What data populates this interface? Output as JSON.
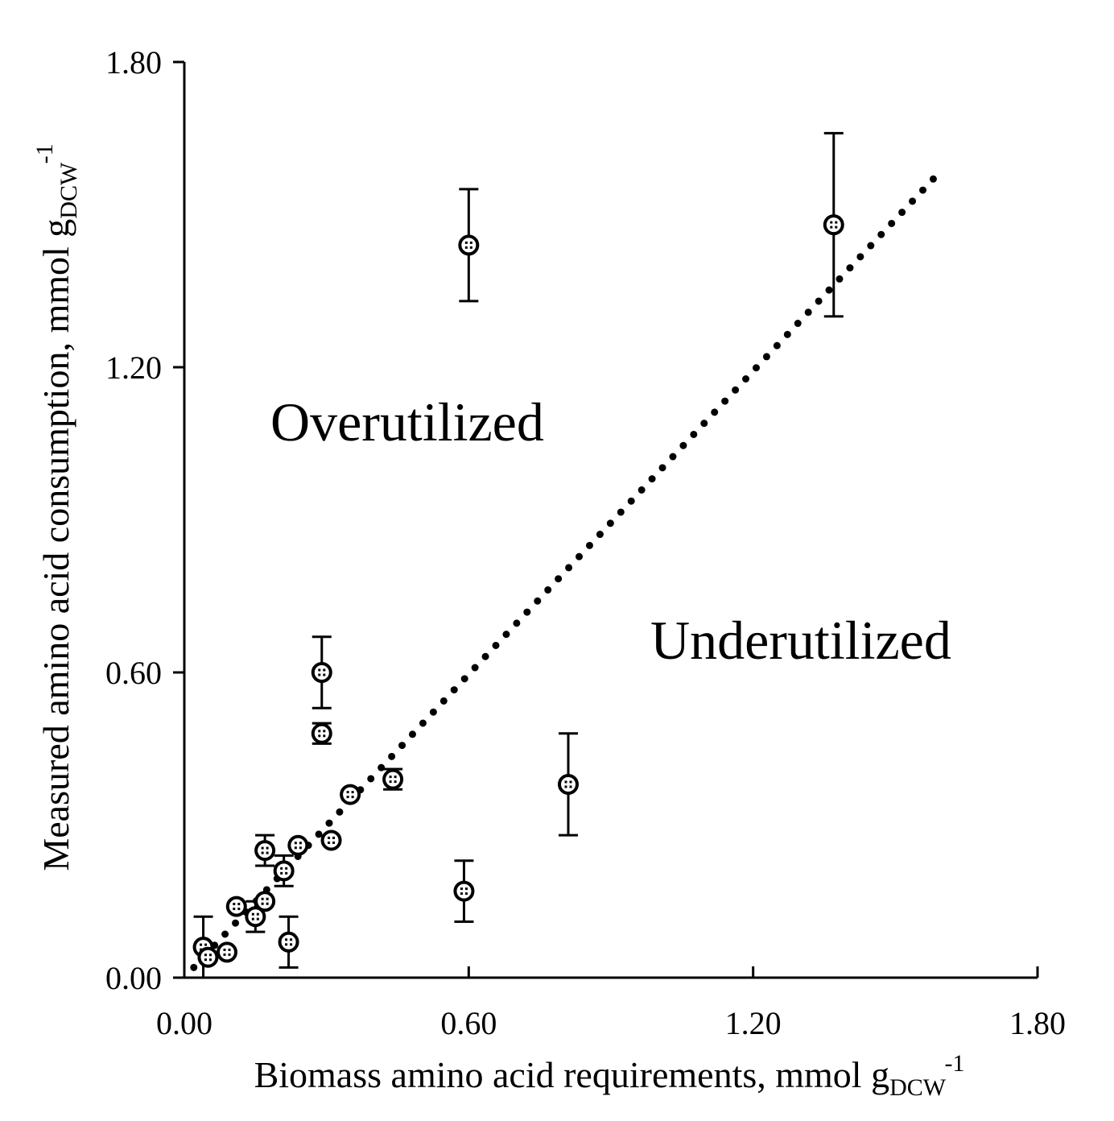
{
  "chart_data": {
    "type": "scatter",
    "title": "",
    "xlabel": {
      "main": "Biomass amino acid requirements, mmol g",
      "sub": "DCW",
      "sup": "-1"
    },
    "ylabel": {
      "main": "Measured amino acid consumption, mmol g",
      "sub": "DCW",
      "sup": "-1"
    },
    "xlim": [
      0,
      1.8
    ],
    "ylim": [
      0,
      1.8
    ],
    "x_ticks": [
      0,
      0.6,
      1.2,
      1.8
    ],
    "y_ticks": [
      0,
      0.6,
      1.2,
      1.8
    ],
    "x_tick_labels": [
      "0.00",
      "0.60",
      "1.20",
      "1.80"
    ],
    "y_tick_labels": [
      "0.00",
      "0.60",
      "1.20",
      "1.80"
    ],
    "grid": false,
    "annotations": [
      {
        "text": "Overutilized",
        "x": 0.19,
        "y": 1.09
      },
      {
        "text": "Underutilized",
        "x": 0.99,
        "y": 0.66
      }
    ],
    "trendline": {
      "style": "dotted",
      "from": [
        0.02,
        0.02
      ],
      "to": [
        1.58,
        1.57
      ]
    },
    "points": [
      {
        "x": 0.04,
        "y": 0.06,
        "err": 0.06
      },
      {
        "x": 0.05,
        "y": 0.04,
        "err": 0.0
      },
      {
        "x": 0.09,
        "y": 0.05,
        "err": 0.0
      },
      {
        "x": 0.11,
        "y": 0.14,
        "err": 0.0
      },
      {
        "x": 0.15,
        "y": 0.12,
        "err": 0.03
      },
      {
        "x": 0.17,
        "y": 0.15,
        "err": 0.0
      },
      {
        "x": 0.17,
        "y": 0.25,
        "err": 0.03
      },
      {
        "x": 0.21,
        "y": 0.21,
        "err": 0.03
      },
      {
        "x": 0.22,
        "y": 0.07,
        "err": 0.05
      },
      {
        "x": 0.24,
        "y": 0.26,
        "err": 0.0
      },
      {
        "x": 0.29,
        "y": 0.6,
        "err": 0.07
      },
      {
        "x": 0.29,
        "y": 0.48,
        "err": 0.02
      },
      {
        "x": 0.31,
        "y": 0.27,
        "err": 0.0
      },
      {
        "x": 0.35,
        "y": 0.36,
        "err": 0.0
      },
      {
        "x": 0.44,
        "y": 0.39,
        "err": 0.02
      },
      {
        "x": 0.59,
        "y": 0.17,
        "err": 0.06
      },
      {
        "x": 0.6,
        "y": 1.44,
        "err": 0.11
      },
      {
        "x": 0.81,
        "y": 0.38,
        "err": 0.1
      },
      {
        "x": 1.37,
        "y": 1.48,
        "err": 0.18
      }
    ]
  }
}
